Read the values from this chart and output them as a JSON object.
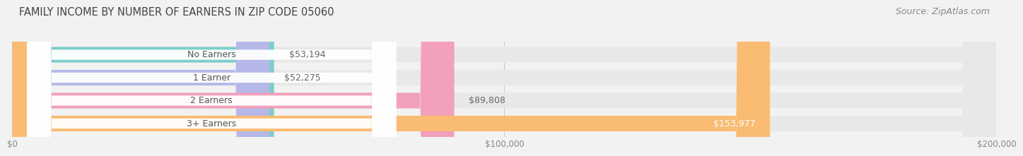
{
  "title": "FAMILY INCOME BY NUMBER OF EARNERS IN ZIP CODE 05060",
  "source_text": "Source: ZipAtlas.com",
  "categories": [
    "No Earners",
    "1 Earner",
    "2 Earners",
    "3+ Earners"
  ],
  "values": [
    53194,
    52275,
    89808,
    153977
  ],
  "bar_colors": [
    "#7dceca",
    "#b5b8e8",
    "#f2a0bb",
    "#f9bc72"
  ],
  "value_labels": [
    "$53,194",
    "$52,275",
    "$89,808",
    "$153,977"
  ],
  "value_inside": [
    false,
    false,
    false,
    true
  ],
  "xlim": [
    0,
    200000
  ],
  "xticks": [
    0,
    100000,
    200000
  ],
  "xtick_labels": [
    "$0",
    "$100,000",
    "$200,000"
  ],
  "bg_color": "#f2f2f2",
  "bar_bg_color": "#e8e8e8",
  "title_fontsize": 10.5,
  "source_fontsize": 9,
  "label_fontsize": 9,
  "value_fontsize": 9
}
